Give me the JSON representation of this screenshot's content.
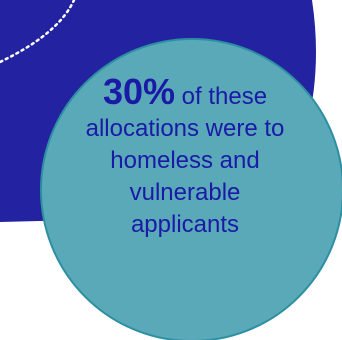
{
  "colors": {
    "background": "#ffffff",
    "navy_shape": "#2323a1",
    "circle_fill": "#5aa9b9",
    "circle_stroke": "#2d8fa2",
    "dotted_arc": "#ffffff",
    "text": "#1a1aa6"
  },
  "callout": {
    "stat": "30%",
    "stat_suffix": " of these",
    "lines": [
      "allocations were to",
      "homeless and",
      "vulnerable",
      "applicants"
    ]
  }
}
